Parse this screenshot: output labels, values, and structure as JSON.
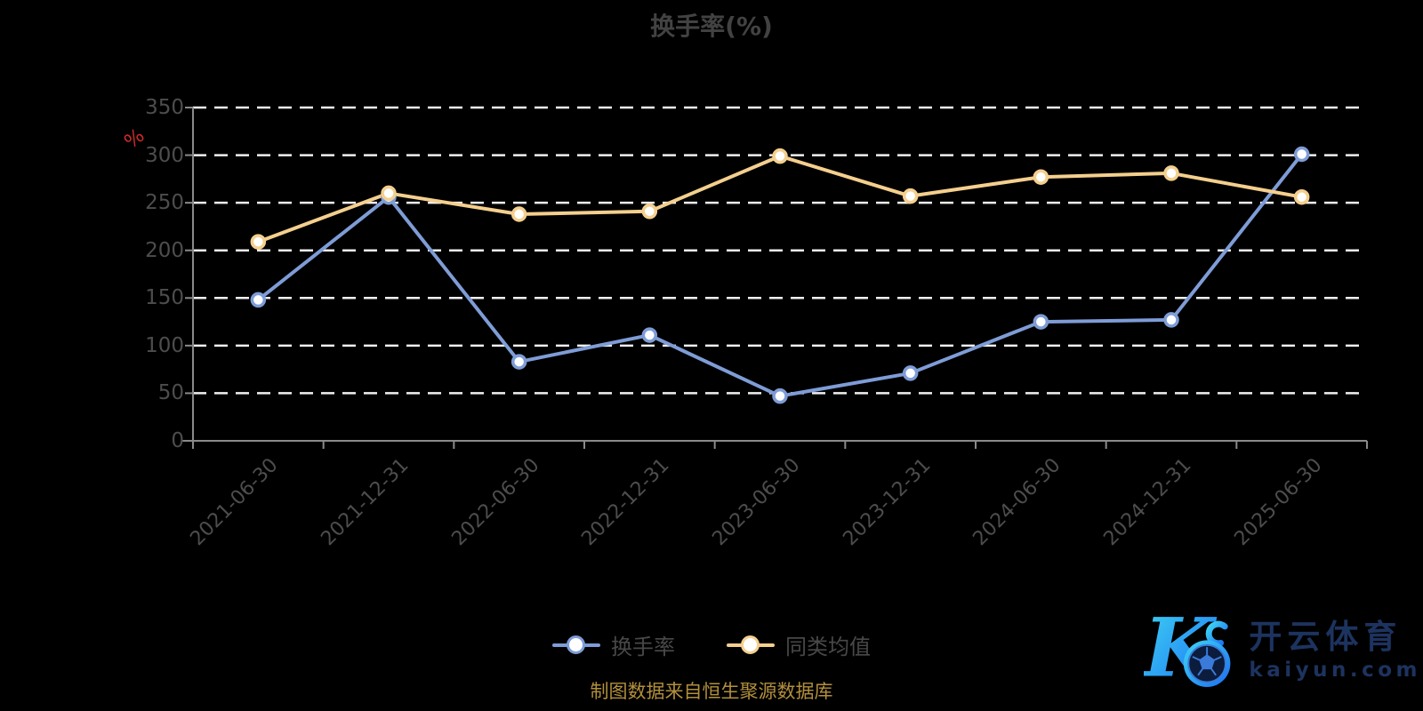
{
  "chart_data": {
    "type": "line",
    "title": "换手率(%)",
    "y_unit": "%",
    "categories": [
      "2021-06-30",
      "2021-12-31",
      "2022-06-30",
      "2022-12-31",
      "2023-06-30",
      "2023-12-31",
      "2024-06-30",
      "2024-12-31",
      "2025-06-30"
    ],
    "series": [
      {
        "name": "换手率",
        "color": "#7e9cd6",
        "marker_fill": "#ffffff",
        "values": [
          148,
          256,
          83,
          111,
          47,
          71,
          125,
          127,
          301
        ]
      },
      {
        "name": "同类均值",
        "color": "#f4cf8d",
        "marker_fill": "#ffffff",
        "values": [
          209,
          260,
          238,
          241,
          299,
          257,
          277,
          281,
          256
        ]
      }
    ],
    "ylim": [
      0,
      350
    ],
    "yticks": [
      0,
      50,
      100,
      150,
      200,
      250,
      300,
      350
    ],
    "grid": "horizontal-dashed-white",
    "legend_position": "bottom-center",
    "background": "#000000",
    "axis_color": "#8a8a8a",
    "gridline_color": "#f0f0f0",
    "label_color": "#4d4d4d"
  },
  "footer": {
    "text": "制图数据来自恒生聚源数据库"
  },
  "watermark": {
    "letter": "K",
    "name": "开云体育",
    "url": "kaiyun.com"
  }
}
